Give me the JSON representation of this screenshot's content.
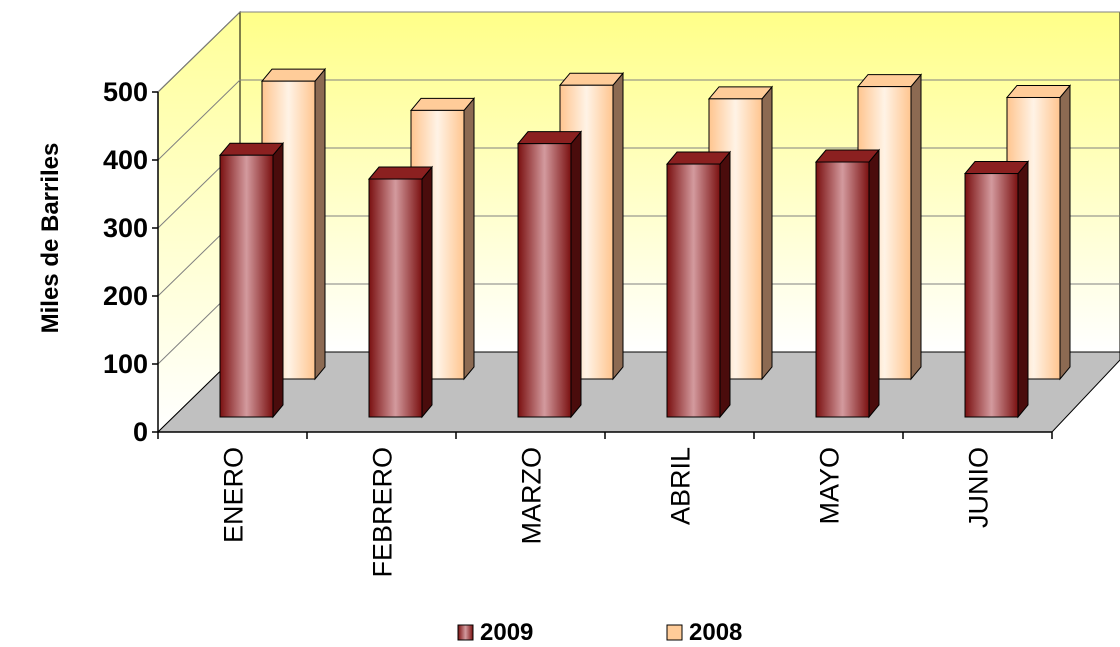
{
  "chart_data": {
    "type": "bar",
    "categories": [
      "ENERO",
      "FEBRERO",
      "MARZO",
      "ABRIL",
      "MAYO",
      "JUNIO"
    ],
    "series": [
      {
        "name": "2009",
        "values": [
          385,
          350,
          402,
          372,
          375,
          358
        ],
        "color": "#8b1a1a"
      },
      {
        "name": "2008",
        "values": [
          438,
          395,
          432,
          412,
          430,
          414
        ],
        "color": "#ffcc99"
      }
    ],
    "ylabel": "Miles de Barriles",
    "ylim": [
      0,
      500
    ],
    "yticks": [
      0,
      100,
      200,
      300,
      400,
      500
    ],
    "grid": true,
    "legend": "bottom",
    "style": "3d-clustered"
  }
}
